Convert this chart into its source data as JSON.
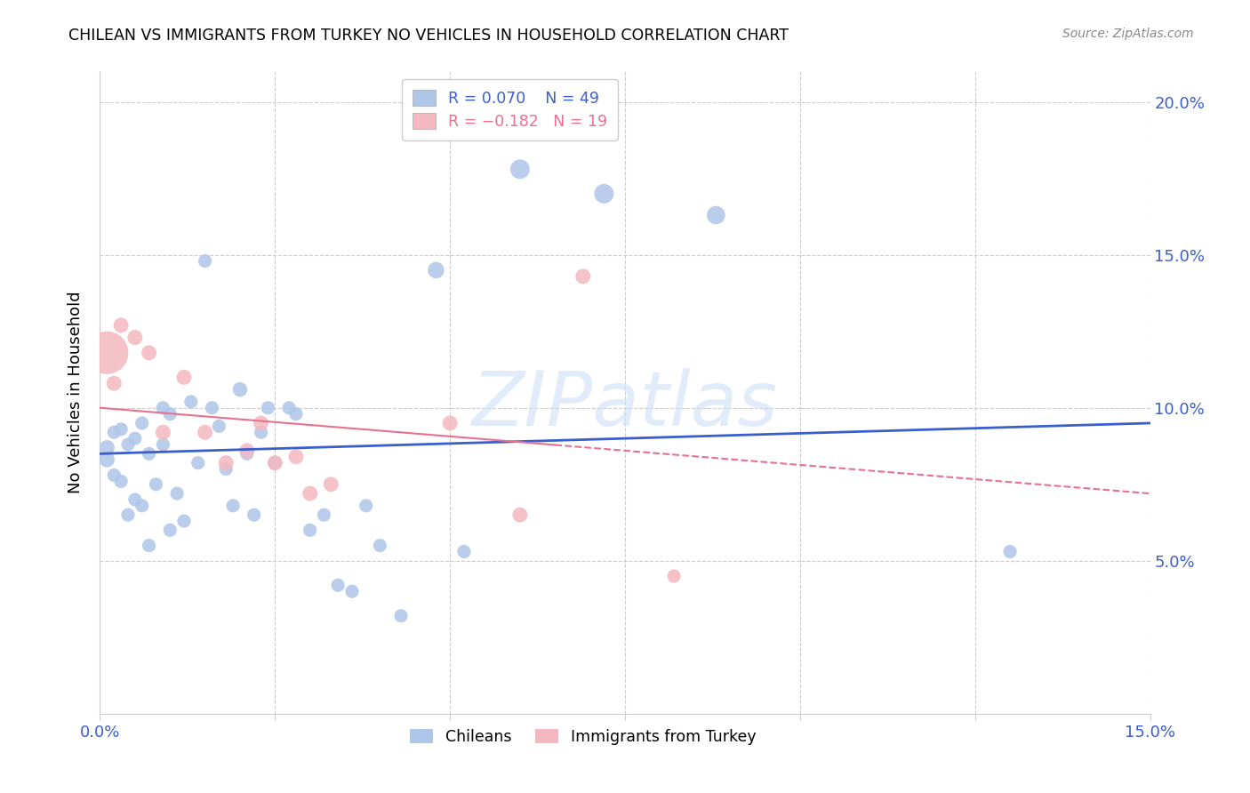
{
  "title": "CHILEAN VS IMMIGRANTS FROM TURKEY NO VEHICLES IN HOUSEHOLD CORRELATION CHART",
  "source": "Source: ZipAtlas.com",
  "ylabel": "No Vehicles in Household",
  "xlim": [
    0.0,
    0.15
  ],
  "ylim": [
    0.0,
    0.21
  ],
  "grid_color": "#cccccc",
  "background_color": "#ffffff",
  "chilean_color": "#aec6e8",
  "turkey_color": "#f4b8c1",
  "chilean_line_color": "#3a5fcd",
  "turkey_line_color": "#e87090",
  "watermark": "ZIPatlas",
  "legend_R_chilean": "R = 0.070",
  "legend_N_chilean": "N = 49",
  "legend_R_turkey": "R = -0.182",
  "legend_N_turkey": "N = 19",
  "chilean_scatter_x": [
    0.001,
    0.001,
    0.002,
    0.002,
    0.003,
    0.003,
    0.004,
    0.004,
    0.005,
    0.005,
    0.006,
    0.006,
    0.007,
    0.007,
    0.008,
    0.009,
    0.009,
    0.01,
    0.01,
    0.011,
    0.012,
    0.013,
    0.014,
    0.015,
    0.016,
    0.017,
    0.018,
    0.019,
    0.02,
    0.021,
    0.022,
    0.023,
    0.024,
    0.025,
    0.027,
    0.028,
    0.03,
    0.032,
    0.034,
    0.036,
    0.038,
    0.04,
    0.043,
    0.048,
    0.052,
    0.06,
    0.072,
    0.088,
    0.13
  ],
  "chilean_scatter_y": [
    0.087,
    0.083,
    0.092,
    0.078,
    0.093,
    0.076,
    0.088,
    0.065,
    0.09,
    0.07,
    0.095,
    0.068,
    0.085,
    0.055,
    0.075,
    0.1,
    0.088,
    0.06,
    0.098,
    0.072,
    0.063,
    0.102,
    0.082,
    0.148,
    0.1,
    0.094,
    0.08,
    0.068,
    0.106,
    0.085,
    0.065,
    0.092,
    0.1,
    0.082,
    0.1,
    0.098,
    0.06,
    0.065,
    0.042,
    0.04,
    0.068,
    0.055,
    0.032,
    0.145,
    0.053,
    0.178,
    0.17,
    0.163,
    0.053
  ],
  "chilean_scatter_size": [
    150,
    150,
    120,
    120,
    120,
    120,
    120,
    120,
    120,
    120,
    120,
    120,
    120,
    120,
    120,
    120,
    120,
    120,
    120,
    120,
    120,
    120,
    120,
    120,
    120,
    120,
    120,
    120,
    140,
    120,
    120,
    120,
    120,
    120,
    120,
    120,
    120,
    120,
    120,
    120,
    120,
    120,
    120,
    180,
    120,
    250,
    250,
    220,
    120
  ],
  "turkey_scatter_x": [
    0.001,
    0.002,
    0.003,
    0.005,
    0.007,
    0.009,
    0.012,
    0.015,
    0.018,
    0.021,
    0.023,
    0.025,
    0.028,
    0.03,
    0.033,
    0.05,
    0.06,
    0.069,
    0.082
  ],
  "turkey_scatter_y": [
    0.118,
    0.108,
    0.127,
    0.123,
    0.118,
    0.092,
    0.11,
    0.092,
    0.082,
    0.086,
    0.095,
    0.082,
    0.084,
    0.072,
    0.075,
    0.095,
    0.065,
    0.143,
    0.045
  ],
  "turkey_scatter_size": [
    1200,
    150,
    150,
    150,
    150,
    150,
    150,
    150,
    150,
    150,
    150,
    150,
    150,
    150,
    150,
    150,
    150,
    150,
    120
  ]
}
